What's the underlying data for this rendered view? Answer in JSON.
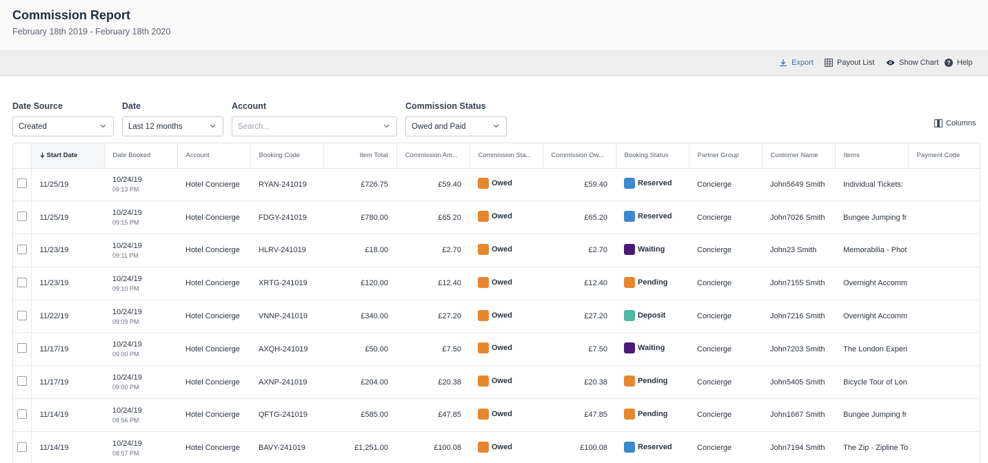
{
  "header": {
    "title": "Commission Report",
    "subtitle": "February 18th 2019 - February 18th 2020"
  },
  "toolbar": {
    "export_label": "Export",
    "payout_label": "Payout List",
    "chart_label": "Show Chart",
    "help_label": "Help"
  },
  "filters": {
    "date_source": {
      "label": "Date Source",
      "value": "Created"
    },
    "date": {
      "label": "Date",
      "value": "Last 12 months"
    },
    "account": {
      "label": "Account",
      "placeholder": "Search..."
    },
    "commission_status": {
      "label": "Commission Status",
      "value": "Owed and Paid"
    }
  },
  "columns_label": "Columns",
  "table": {
    "headers": {
      "start_date": "Start Date",
      "date_booked": "Date Booked",
      "account": "Account",
      "booking_code": "Booking Code",
      "item_total": "Item Total",
      "commission_amount": "Commission Am...",
      "commission_status": "Commission Sta...",
      "commission_owed": "Commission Ow...",
      "booking_status": "Booking Status",
      "partner_group": "Partner Group",
      "customer_name": "Customer Name",
      "items": "Items",
      "payment_code": "Payment Code"
    },
    "rows": [
      {
        "start_date": "11/25/19",
        "booked_date": "10/24/19",
        "booked_time": "09:13 PM",
        "account": "Hotel Concierge",
        "booking_code": "RYAN-241019",
        "item_total": "£726.75",
        "commission_amount": "£59.40",
        "commission_status": "Owed",
        "commission_owed": "£59.40",
        "booking_status": "Reserved",
        "partner_group": "Concierge",
        "customer_name": "John5649 Smith",
        "items": "Individual Tickets: ",
        "payment_code": ""
      },
      {
        "start_date": "11/25/19",
        "booked_date": "10/24/19",
        "booked_time": "09:15 PM",
        "account": "Hotel Concierge",
        "booking_code": "FDGY-241019",
        "item_total": "£780.00",
        "commission_amount": "£65.20",
        "commission_status": "Owed",
        "commission_owed": "£65.20",
        "booking_status": "Reserved",
        "partner_group": "Concierge",
        "customer_name": "John7026 Smith",
        "items": "Bungee Jumping fr",
        "payment_code": ""
      },
      {
        "start_date": "11/23/19",
        "booked_date": "10/24/19",
        "booked_time": "09:11 PM",
        "account": "Hotel Concierge",
        "booking_code": "HLRV-241019",
        "item_total": "£18.00",
        "commission_amount": "£2.70",
        "commission_status": "Owed",
        "commission_owed": "£2.70",
        "booking_status": "Waiting",
        "partner_group": "Concierge",
        "customer_name": "John23 Smith",
        "items": "Memorabilia - Phot",
        "payment_code": ""
      },
      {
        "start_date": "11/23/19",
        "booked_date": "10/24/19",
        "booked_time": "09:10 PM",
        "account": "Hotel Concierge",
        "booking_code": "XRTG-241019",
        "item_total": "£120.00",
        "commission_amount": "£12.40",
        "commission_status": "Owed",
        "commission_owed": "£12.40",
        "booking_status": "Pending",
        "partner_group": "Concierge",
        "customer_name": "John7155 Smith",
        "items": "Overnight Accomm",
        "payment_code": ""
      },
      {
        "start_date": "11/22/19",
        "booked_date": "10/24/19",
        "booked_time": "09:09 PM",
        "account": "Hotel Concierge",
        "booking_code": "VNNP-241019",
        "item_total": "£340.00",
        "commission_amount": "£27.20",
        "commission_status": "Owed",
        "commission_owed": "£27.20",
        "booking_status": "Deposit",
        "partner_group": "Concierge",
        "customer_name": "John7216 Smith",
        "items": "Overnight Accomm",
        "payment_code": ""
      },
      {
        "start_date": "11/17/19",
        "booked_date": "10/24/19",
        "booked_time": "09:00 PM",
        "account": "Hotel Concierge",
        "booking_code": "AXQH-241019",
        "item_total": "£50.00",
        "commission_amount": "£7.50",
        "commission_status": "Owed",
        "commission_owed": "£7.50",
        "booking_status": "Waiting",
        "partner_group": "Concierge",
        "customer_name": "John7203 Smith",
        "items": "The London Experi",
        "payment_code": ""
      },
      {
        "start_date": "11/17/19",
        "booked_date": "10/24/19",
        "booked_time": "09:00 PM",
        "account": "Hotel Concierge",
        "booking_code": "AXNP-241019",
        "item_total": "£204.00",
        "commission_amount": "£20.38",
        "commission_status": "Owed",
        "commission_owed": "£20.38",
        "booking_status": "Pending",
        "partner_group": "Concierge",
        "customer_name": "John5405 Smith",
        "items": "Bicycle Tour of Lon",
        "payment_code": ""
      },
      {
        "start_date": "11/14/19",
        "booked_date": "10/24/19",
        "booked_time": "08:56 PM",
        "account": "Hotel Concierge",
        "booking_code": "QFTG-241019",
        "item_total": "£585.00",
        "commission_amount": "£47.85",
        "commission_status": "Owed",
        "commission_owed": "£47.85",
        "booking_status": "Pending",
        "partner_group": "Concierge",
        "customer_name": "John1667 Smith",
        "items": "Bungee Jumping fr",
        "payment_code": ""
      },
      {
        "start_date": "11/14/19",
        "booked_date": "10/24/19",
        "booked_time": "08:57 PM",
        "account": "Hotel Concierge",
        "booking_code": "BAVY-241019",
        "item_total": "£1,251.00",
        "commission_amount": "£100.08",
        "commission_status": "Owed",
        "commission_owed": "£100.08",
        "booking_status": "Reserved",
        "partner_group": "Concierge",
        "customer_name": "John7194 Smith",
        "items": "The Zip - Zipline To",
        "payment_code": ""
      }
    ]
  },
  "status_colors": {
    "Owed": "#e8862e",
    "Reserved": "#3b8ad0",
    "Waiting": "#4a1a78",
    "Pending": "#e8862e",
    "Deposit": "#4db8a4"
  },
  "icons": {
    "export": "download-icon",
    "payout": "grid-table-icon",
    "chart": "eye-icon",
    "help": "question-circle-icon",
    "columns": "columns-icon",
    "sort": "sort-down-arrow-icon",
    "dropdown": "chevron-down-icon"
  }
}
